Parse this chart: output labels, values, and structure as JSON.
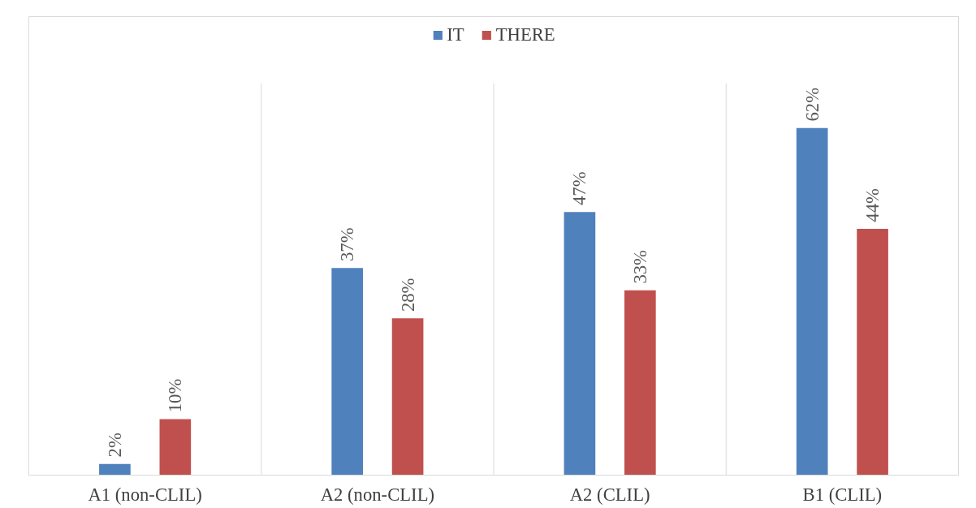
{
  "chart_data": {
    "type": "bar",
    "categories": [
      "A1 (non-CLIL)",
      "A2 (non-CLIL)",
      "A2 (CLIL)",
      "B1 (CLIL)"
    ],
    "series": [
      {
        "name": "IT",
        "color": "#4f81bd",
        "values": [
          2,
          37,
          47,
          62
        ],
        "value_labels": [
          "2%",
          "37%",
          "47%",
          "62%"
        ]
      },
      {
        "name": "THERE",
        "color": "#c0504d",
        "values": [
          10,
          28,
          33,
          44
        ],
        "value_labels": [
          "10%",
          "28%",
          "33%",
          "44%"
        ]
      }
    ],
    "ylim": [
      0,
      70
    ],
    "grid": "x",
    "legend": "top",
    "tick_labels": "x"
  }
}
